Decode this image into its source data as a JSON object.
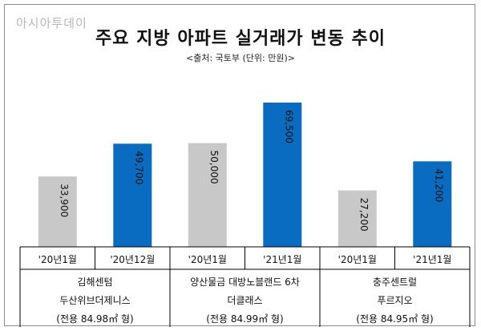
{
  "logo_text": "아시아투데이",
  "chart_data": {
    "type": "bar",
    "title": "주요 지방 아파트 실거래가 변동 추이",
    "source": "<출처: 국토부 (단위: 만원)>",
    "colors": {
      "previous": "#c8c8c8",
      "latest": "#0a6cc1"
    },
    "groups": [
      {
        "name_lines": [
          "김해센텀",
          "두산위브더제니스",
          "(전용 84.98㎡ 형)"
        ],
        "bars": [
          {
            "period": "'20년1월",
            "value": 33900,
            "label": "33,900",
            "kind": "previous"
          },
          {
            "period": "'20년12월",
            "value": 49700,
            "label": "49,700",
            "kind": "latest"
          }
        ]
      },
      {
        "name_lines": [
          "양산물금 대방노블랜드 6차",
          "더클래스",
          "(전용 84.99㎡ 형)"
        ],
        "bars": [
          {
            "period": "'20년1월",
            "value": 50000,
            "label": "50,000",
            "kind": "previous"
          },
          {
            "period": "'21년1월",
            "value": 69500,
            "label": "69,500",
            "kind": "latest"
          }
        ]
      },
      {
        "name_lines": [
          "충주센트럴",
          "푸르지오",
          "(전용 84.95㎡ 형)"
        ],
        "bars": [
          {
            "period": "'20년1월",
            "value": 27200,
            "label": "27,200",
            "kind": "previous"
          },
          {
            "period": "'21년1월",
            "value": 41200,
            "label": "41,200",
            "kind": "latest"
          }
        ]
      }
    ]
  }
}
